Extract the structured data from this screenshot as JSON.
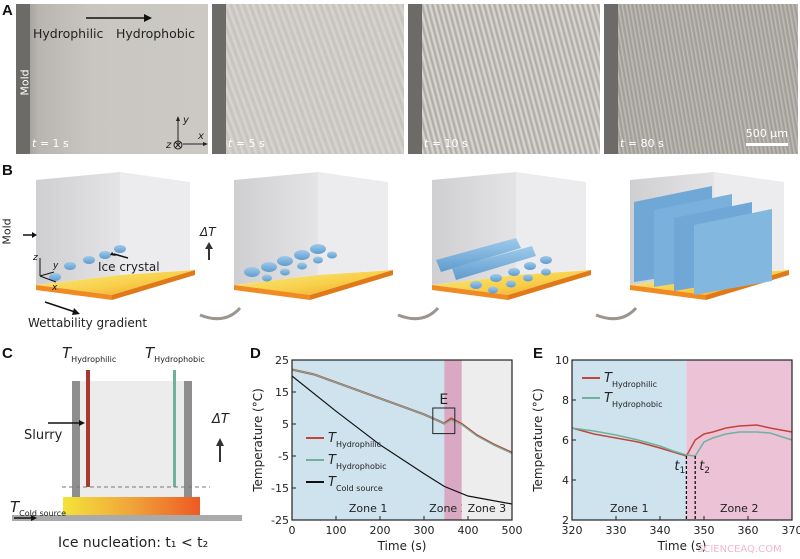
{
  "panels": {
    "A": {
      "letter": "A",
      "direction_from": "Hydrophilic",
      "direction_to": "Hydrophobic",
      "mold_label": "Mold",
      "axes": {
        "x": "x",
        "y": "y",
        "z": "z"
      },
      "frames": [
        {
          "t_label": "t",
          "t_value": " = 1 s"
        },
        {
          "t_label": "t",
          "t_value": " = 5 s"
        },
        {
          "t_label": "t",
          "t_value": " = 10 s"
        },
        {
          "t_label": "t",
          "t_value": " = 80 s"
        }
      ],
      "scale_bar": "500 μm"
    },
    "B": {
      "letter": "B",
      "mold_label": "Mold",
      "ice_crystal_label": "Ice crystal",
      "gradient_label": "Wettability gradient",
      "delta_t": "ΔT",
      "axes": {
        "x": "x",
        "y": "y",
        "z": "z"
      }
    },
    "C": {
      "letter": "C",
      "t_hydrophilic": "Hydrophilic",
      "t_hydrophobic": "Hydrophobic",
      "t_symbol": "T",
      "slurry_label": "Slurry",
      "delta_t": "ΔT",
      "cold_source": "Cold source",
      "caption": "Ice nucleation: t₁ < t₂"
    },
    "D": {
      "letter": "D",
      "zoom_box_label": "E"
    },
    "E": {
      "letter": "E",
      "t1": "t₁",
      "t2": "t₂"
    }
  },
  "colors": {
    "hydrophilic": "#c0463a",
    "hydrophobic": "#6fb19c",
    "cold_source": "#111111",
    "zone1_bg": "#cfe3ee",
    "zone2_bg": "#d9a9c4",
    "zone2_bg_E": "#ecc3d6",
    "zone3_bg": "#ededed",
    "ice": "#7fb3dc",
    "plate_yellow": "#f7e06a",
    "plate_orange": "#f08a23"
  },
  "chart_data": [
    {
      "id": "D",
      "type": "line",
      "title": "",
      "xlabel": "Time (s)",
      "ylabel": "Temperature (°C)",
      "xlim": [
        0,
        500
      ],
      "ylim": [
        -25,
        25
      ],
      "xticks": [
        0,
        100,
        200,
        300,
        400,
        500
      ],
      "yticks": [
        25,
        15,
        5,
        -5,
        -15,
        -25
      ],
      "grid": false,
      "legend_position": "lower-left inside",
      "zones": [
        {
          "label": "Zone 1",
          "x": [
            0,
            346
          ]
        },
        {
          "label": "Zone 2→",
          "x": [
            346,
            386
          ]
        },
        {
          "label": "Zone 3",
          "x": [
            386,
            500
          ]
        }
      ],
      "annotations": [
        {
          "text": "E",
          "box_x": [
            320,
            370
          ],
          "box_y": [
            2,
            10
          ]
        }
      ],
      "series": [
        {
          "name": "T Hydrophilic",
          "x": [
            0,
            50,
            100,
            150,
            200,
            250,
            300,
            346,
            362,
            386,
            420,
            460,
            500
          ],
          "values": [
            22,
            20.5,
            18,
            15.5,
            13,
            10.5,
            8,
            5.2,
            6.7,
            5,
            1.5,
            -1.5,
            -4
          ]
        },
        {
          "name": "T Hydrophobic",
          "x": [
            0,
            50,
            100,
            150,
            200,
            250,
            300,
            348,
            362,
            386,
            420,
            460,
            500
          ],
          "values": [
            22,
            20.5,
            18,
            15.5,
            13,
            10.5,
            8,
            5.1,
            6.3,
            4.8,
            1.3,
            -1.7,
            -4.2
          ]
        },
        {
          "name": "T Cold source",
          "x": [
            0,
            100,
            200,
            300,
            346,
            400,
            500
          ],
          "values": [
            20,
            9,
            -1.5,
            -10.5,
            -14.5,
            -17.5,
            -20
          ]
        }
      ]
    },
    {
      "id": "E",
      "type": "line",
      "title": "",
      "xlabel": "Time (s)",
      "ylabel": "Temperature (°C)",
      "xlim": [
        320,
        370
      ],
      "ylim": [
        2,
        10
      ],
      "xticks": [
        320,
        330,
        340,
        350,
        360,
        370
      ],
      "yticks": [
        10,
        8,
        6,
        4,
        2
      ],
      "grid": false,
      "legend_position": "upper-left inside",
      "zones": [
        {
          "label": "Zone 1",
          "x": [
            320,
            346
          ]
        },
        {
          "label": "Zone 2",
          "x": [
            346,
            370
          ]
        }
      ],
      "annotations": [
        {
          "text": "t₁",
          "x": 346
        },
        {
          "text": "t₂",
          "x": 348
        }
      ],
      "series": [
        {
          "name": "T Hydrophilic",
          "x": [
            320,
            325,
            330,
            335,
            340,
            343,
            346,
            348,
            350,
            352,
            355,
            358,
            362,
            365,
            370
          ],
          "values": [
            6.6,
            6.3,
            6.1,
            5.9,
            5.6,
            5.4,
            5.2,
            6.0,
            6.3,
            6.4,
            6.6,
            6.7,
            6.75,
            6.6,
            6.4
          ]
        },
        {
          "name": "T Hydrophobic",
          "x": [
            320,
            325,
            330,
            335,
            340,
            343,
            346,
            348,
            350,
            352,
            355,
            358,
            362,
            365,
            370
          ],
          "values": [
            6.6,
            6.45,
            6.25,
            6.0,
            5.7,
            5.45,
            5.25,
            5.2,
            5.9,
            6.1,
            6.3,
            6.4,
            6.4,
            6.35,
            6.0
          ]
        }
      ]
    }
  ],
  "watermark": "SCIENCEAQ.COM"
}
